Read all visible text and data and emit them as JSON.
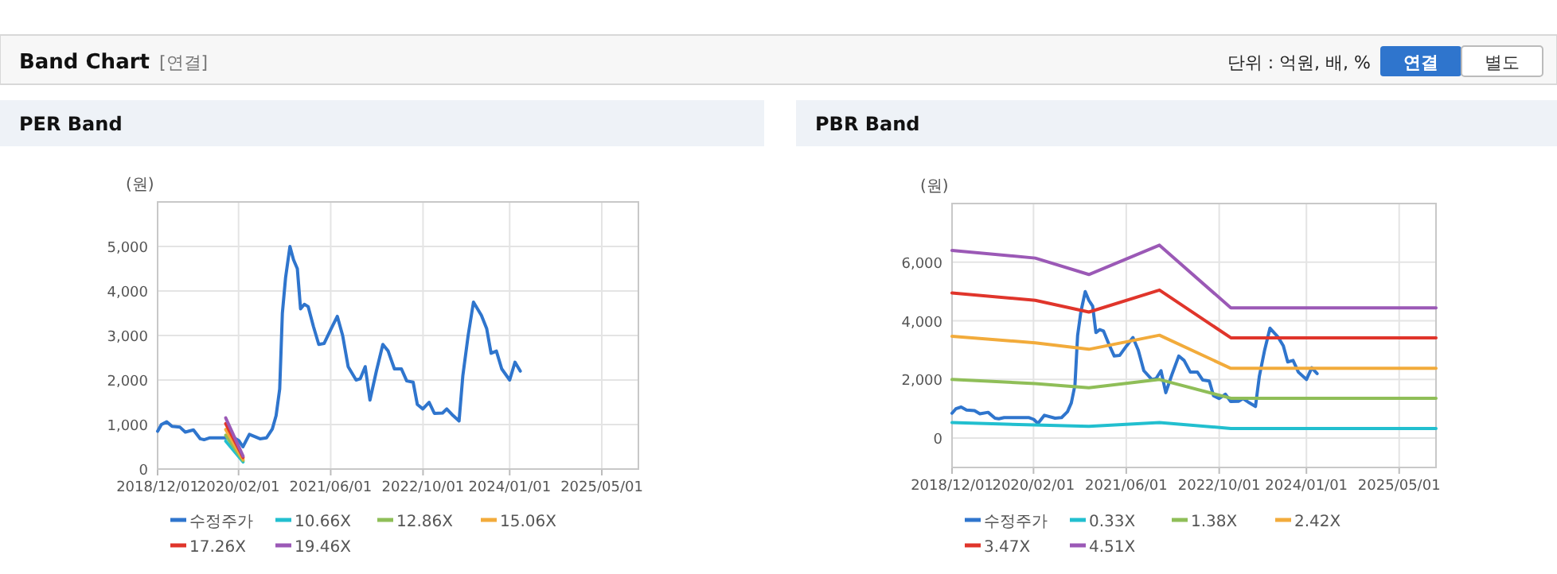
{
  "chart_data": [
    {
      "type": "other",
      "title": "Band Chart",
      "annotations": [
        "[연결]",
        "단위 : 억원, 배, %",
        "연결",
        "별도"
      ]
    },
    {
      "type": "line",
      "title": "PER Band",
      "ylabel": "(원)",
      "xlim": [
        "2018-12-01",
        "2025-11-10"
      ],
      "ylim": [
        0,
        6000
      ],
      "xticks": [
        {
          "value": "2018-12-01",
          "label": "2018/12/01"
        },
        {
          "value": "2020-02-01",
          "label": "2020/02/01"
        },
        {
          "value": "2021-06-01",
          "label": "2021/06/01"
        },
        {
          "value": "2022-10-01",
          "label": "2022/10/01"
        },
        {
          "value": "2024-01-01",
          "label": "2024/01/01"
        },
        {
          "value": "2025-05-01",
          "label": "2025/05/01"
        }
      ],
      "yticks": [
        0,
        {
          "value": 1000,
          "label": "1,000"
        },
        {
          "value": 2000,
          "label": "2,000"
        },
        {
          "value": 3000,
          "label": "3,000"
        },
        {
          "value": 4000,
          "label": "4,000"
        },
        {
          "value": 5000,
          "label": "5,000"
        }
      ],
      "grid": true,
      "legend": "bottom",
      "line_style": "solid",
      "series": [
        {
          "name": "수정주가",
          "color": "#2f75cd",
          "x": [
            "2018-12-01",
            "2018-12-21",
            "2019-01-18",
            "2019-02-15",
            "2019-03-29",
            "2019-04-26",
            "2019-06-08",
            "2019-07-14",
            "2019-08-03",
            "2019-08-31",
            "2019-11-23",
            "2020-01-09",
            "2020-02-02",
            "2020-02-24",
            "2020-03-29",
            "2020-05-24",
            "2020-06-27",
            "2020-07-28",
            "2020-08-17",
            "2020-09-05",
            "2020-09-19",
            "2020-10-06",
            "2020-10-29",
            "2020-11-17",
            "2020-12-07",
            "2020-12-24",
            "2021-01-13",
            "2021-02-02",
            "2021-03-02",
            "2021-03-30",
            "2021-04-27",
            "2021-06-03",
            "2021-07-06",
            "2021-08-03",
            "2021-09-01",
            "2021-10-13",
            "2021-11-04",
            "2021-11-30",
            "2021-12-25",
            "2022-01-28",
            "2022-03-03",
            "2022-03-31",
            "2022-05-03",
            "2022-06-09",
            "2022-07-07",
            "2022-08-10",
            "2022-09-01",
            "2022-09-30",
            "2022-11-02",
            "2022-11-30",
            "2023-01-12",
            "2023-02-03",
            "2023-03-09",
            "2023-04-09",
            "2023-04-29",
            "2023-05-27",
            "2023-06-24",
            "2023-08-05",
            "2023-09-02",
            "2023-09-25",
            "2023-10-23",
            "2023-11-20",
            "2024-01-01",
            "2024-01-29",
            "2024-02-26"
          ],
          "values": [
            850,
            1000,
            1060,
            960,
            940,
            830,
            880,
            680,
            660,
            700,
            700,
            700,
            640,
            500,
            780,
            680,
            700,
            900,
            1200,
            1800,
            3500,
            4300,
            5000,
            4700,
            4500,
            3600,
            3700,
            3650,
            3200,
            2800,
            2820,
            3150,
            3430,
            3000,
            2300,
            2000,
            2030,
            2300,
            1550,
            2200,
            2800,
            2650,
            2250,
            2250,
            1980,
            1950,
            1450,
            1350,
            1500,
            1250,
            1260,
            1350,
            1200,
            1080,
            2100,
            3000,
            3750,
            3450,
            3150,
            2600,
            2650,
            2250,
            2000,
            2400,
            2200
          ]
        },
        {
          "name": "10.66X",
          "color": "#22bfcf",
          "x": [
            "2019-11-25",
            "2020-02-25"
          ],
          "values": [
            630,
            160
          ]
        },
        {
          "name": "12.86X",
          "color": "#8fbe58",
          "x": [
            "2019-11-25",
            "2020-02-25"
          ],
          "values": [
            760,
            190
          ]
        },
        {
          "name": "15.06X",
          "color": "#f2ab3b",
          "x": [
            "2019-11-25",
            "2020-02-25"
          ],
          "values": [
            890,
            220
          ]
        },
        {
          "name": "17.26X",
          "color": "#e0352b",
          "x": [
            "2019-11-25",
            "2020-02-25"
          ],
          "values": [
            1020,
            260
          ]
        },
        {
          "name": "19.46X",
          "color": "#9b59b6",
          "x": [
            "2019-11-25",
            "2020-02-25"
          ],
          "values": [
            1150,
            290
          ]
        }
      ]
    },
    {
      "type": "line",
      "title": "PBR Band",
      "ylabel": "(원)",
      "xlim": [
        "2018-12-01",
        "2025-11-10"
      ],
      "ylim": [
        -1000,
        8000
      ],
      "xticks": [
        {
          "value": "2018-12-01",
          "label": "2018/12/01"
        },
        {
          "value": "2020-02-01",
          "label": "2020/02/01"
        },
        {
          "value": "2021-06-01",
          "label": "2021/06/01"
        },
        {
          "value": "2022-10-01",
          "label": "2022/10/01"
        },
        {
          "value": "2024-01-01",
          "label": "2024/01/01"
        },
        {
          "value": "2025-05-01",
          "label": "2025/05/01"
        }
      ],
      "yticks": [
        0,
        {
          "value": 2000,
          "label": "2,000"
        },
        {
          "value": 4000,
          "label": "4,000"
        },
        {
          "value": 6000,
          "label": "6,000"
        }
      ],
      "grid": true,
      "legend": "bottom",
      "line_style": "solid",
      "series": [
        {
          "name": "수정주가",
          "color": "#2f75cd",
          "x": [
            "2018-12-01",
            "2018-12-21",
            "2019-01-18",
            "2019-02-15",
            "2019-03-29",
            "2019-04-26",
            "2019-06-08",
            "2019-07-14",
            "2019-08-03",
            "2019-08-31",
            "2019-11-23",
            "2020-01-09",
            "2020-02-02",
            "2020-02-24",
            "2020-03-29",
            "2020-05-24",
            "2020-06-27",
            "2020-07-28",
            "2020-08-17",
            "2020-09-05",
            "2020-09-19",
            "2020-10-06",
            "2020-10-29",
            "2020-11-17",
            "2020-12-07",
            "2020-12-24",
            "2021-01-13",
            "2021-02-02",
            "2021-03-02",
            "2021-03-30",
            "2021-04-27",
            "2021-06-03",
            "2021-07-06",
            "2021-08-03",
            "2021-09-01",
            "2021-10-13",
            "2021-11-04",
            "2021-11-30",
            "2021-12-25",
            "2022-01-28",
            "2022-03-03",
            "2022-03-31",
            "2022-05-03",
            "2022-06-09",
            "2022-07-07",
            "2022-08-10",
            "2022-09-01",
            "2022-09-30",
            "2022-11-02",
            "2022-11-30",
            "2023-01-12",
            "2023-02-03",
            "2023-03-09",
            "2023-04-09",
            "2023-04-29",
            "2023-05-27",
            "2023-06-24",
            "2023-08-05",
            "2023-09-02",
            "2023-09-25",
            "2023-10-23",
            "2023-11-20",
            "2024-01-01",
            "2024-01-29",
            "2024-02-26"
          ],
          "values": [
            850,
            1000,
            1060,
            960,
            940,
            830,
            880,
            680,
            660,
            700,
            700,
            700,
            640,
            500,
            780,
            680,
            700,
            900,
            1200,
            1800,
            3500,
            4300,
            5000,
            4700,
            4500,
            3600,
            3700,
            3650,
            3200,
            2800,
            2820,
            3150,
            3430,
            3000,
            2300,
            2000,
            2030,
            2300,
            1550,
            2200,
            2800,
            2650,
            2250,
            2250,
            1980,
            1950,
            1450,
            1350,
            1500,
            1250,
            1260,
            1350,
            1200,
            1080,
            2100,
            3000,
            3750,
            3450,
            3150,
            2600,
            2650,
            2250,
            2000,
            2400,
            2200
          ]
        },
        {
          "name": "0.33X",
          "color": "#22bfcf",
          "x": [
            "2018-12-01",
            "2020-11-17",
            "2021-11-22",
            "2022-12-01",
            "2025-11-10"
          ],
          "values": [
            530,
            400,
            530,
            330,
            330
          ]
        },
        {
          "name": "1.38X",
          "color": "#8fbe58",
          "x": [
            "2018-12-01",
            "2020-02-10",
            "2020-11-17",
            "2021-11-22",
            "2022-12-01",
            "2025-11-10"
          ],
          "values": [
            2000,
            1860,
            1720,
            2000,
            1360,
            1360
          ]
        },
        {
          "name": "2.42X",
          "color": "#f2ab3b",
          "x": [
            "2018-12-01",
            "2020-02-10",
            "2020-11-17",
            "2021-11-22",
            "2022-12-01",
            "2025-11-10"
          ],
          "values": [
            3470,
            3250,
            3030,
            3510,
            2380,
            2380
          ]
        },
        {
          "name": "3.47X",
          "color": "#e0352b",
          "x": [
            "2018-12-01",
            "2020-02-10",
            "2020-11-17",
            "2021-11-22",
            "2022-12-01",
            "2025-11-10"
          ],
          "values": [
            4950,
            4700,
            4300,
            5050,
            3420,
            3420
          ]
        },
        {
          "name": "4.51X",
          "color": "#9b59b6",
          "x": [
            "2018-12-01",
            "2020-02-10",
            "2020-11-17",
            "2021-11-22",
            "2022-12-01",
            "2025-11-10"
          ],
          "values": [
            6400,
            6140,
            5580,
            6580,
            4440,
            4440
          ]
        }
      ]
    }
  ]
}
